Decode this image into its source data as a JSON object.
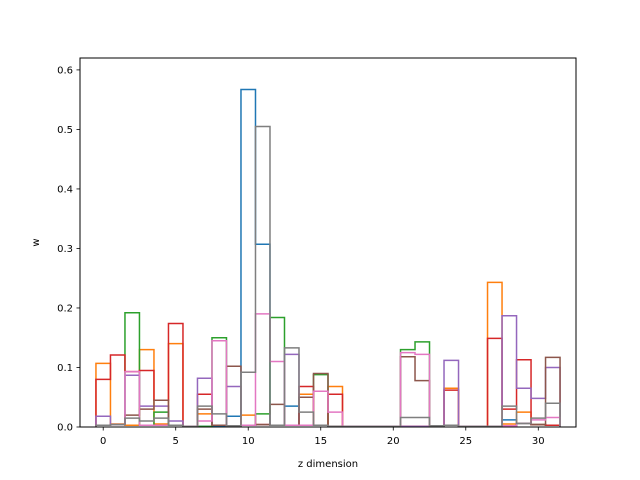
{
  "chart_data": {
    "type": "step",
    "title": "",
    "xlabel": "z dimension",
    "ylabel": "w",
    "xlim": [
      -1.6,
      32.6
    ],
    "ylim": [
      0,
      0.62
    ],
    "xticks": [
      0,
      5,
      10,
      15,
      20,
      25,
      30
    ],
    "xtick_labels": [
      "0",
      "5",
      "10",
      "15",
      "20",
      "25",
      "30"
    ],
    "yticks": [
      0.0,
      0.1,
      0.2,
      0.3,
      0.4,
      0.5,
      0.6
    ],
    "ytick_labels": [
      "0.0",
      "0.1",
      "0.2",
      "0.3",
      "0.4",
      "0.5",
      "0.6"
    ],
    "grid": false,
    "legend": false,
    "x": [
      0,
      1,
      2,
      3,
      4,
      5,
      6,
      7,
      8,
      9,
      10,
      11,
      12,
      13,
      14,
      15,
      16,
      17,
      18,
      19,
      20,
      21,
      22,
      23,
      24,
      25,
      26,
      27,
      28,
      29,
      30,
      31
    ],
    "series": [
      {
        "color": "#1f77b4",
        "values": [
          0.003,
          0.004,
          0.003,
          0.003,
          0.003,
          0.003,
          0.001,
          0.001,
          0.002,
          0.018,
          0.567,
          0.307,
          0.003,
          0.035,
          0.003,
          0.003,
          0.001,
          0.001,
          0.001,
          0.001,
          0.001,
          0.001,
          0.001,
          0.002,
          0.003,
          0.001,
          0.001,
          0.001,
          0.012,
          0.006,
          0.004,
          0.003
        ]
      },
      {
        "color": "#ff7f0e",
        "values": [
          0.107,
          0.005,
          0.003,
          0.13,
          0.005,
          0.14,
          0.001,
          0.022,
          0.003,
          0.002,
          0.02,
          0.004,
          0.003,
          0.003,
          0.055,
          0.003,
          0.068,
          0.001,
          0.001,
          0.001,
          0.001,
          0.001,
          0.001,
          0.002,
          0.065,
          0.001,
          0.001,
          0.243,
          0.005,
          0.025,
          0.004,
          0.003
        ]
      },
      {
        "color": "#2ca02c",
        "values": [
          0.003,
          0.004,
          0.192,
          0.003,
          0.025,
          0.003,
          0.001,
          0.001,
          0.15,
          0.002,
          0.003,
          0.022,
          0.184,
          0.003,
          0.003,
          0.088,
          0.001,
          0.001,
          0.001,
          0.001,
          0.001,
          0.13,
          0.143,
          0.002,
          0.003,
          0.001,
          0.001,
          0.001,
          0.002,
          0.006,
          0.004,
          0.003
        ]
      },
      {
        "color": "#d62728",
        "values": [
          0.08,
          0.121,
          0.093,
          0.095,
          0.045,
          0.174,
          0.001,
          0.055,
          0.003,
          0.002,
          0.003,
          0.004,
          0.003,
          0.003,
          0.068,
          0.003,
          0.055,
          0.001,
          0.001,
          0.001,
          0.001,
          0.001,
          0.001,
          0.002,
          0.062,
          0.001,
          0.001,
          0.149,
          0.03,
          0.113,
          0.004,
          0.003
        ]
      },
      {
        "color": "#9467bd",
        "values": [
          0.018,
          0.004,
          0.087,
          0.035,
          0.035,
          0.01,
          0.001,
          0.082,
          0.003,
          0.068,
          0.003,
          0.004,
          0.003,
          0.122,
          0.003,
          0.003,
          0.001,
          0.001,
          0.001,
          0.001,
          0.001,
          0.001,
          0.001,
          0.002,
          0.112,
          0.001,
          0.001,
          0.001,
          0.187,
          0.065,
          0.048,
          0.1
        ]
      },
      {
        "color": "#8c564b",
        "values": [
          0.003,
          0.004,
          0.02,
          0.03,
          0.045,
          0.003,
          0.001,
          0.03,
          0.003,
          0.102,
          0.003,
          0.004,
          0.038,
          0.003,
          0.05,
          0.09,
          0.001,
          0.001,
          0.001,
          0.001,
          0.001,
          0.118,
          0.078,
          0.002,
          0.003,
          0.001,
          0.001,
          0.001,
          0.002,
          0.006,
          0.004,
          0.117
        ]
      },
      {
        "color": "#e377c2",
        "values": [
          0.003,
          0.004,
          0.093,
          0.003,
          0.003,
          0.003,
          0.001,
          0.01,
          0.145,
          0.002,
          0.003,
          0.19,
          0.11,
          0.003,
          0.003,
          0.06,
          0.025,
          0.001,
          0.001,
          0.001,
          0.001,
          0.125,
          0.122,
          0.002,
          0.003,
          0.001,
          0.001,
          0.001,
          0.002,
          0.006,
          0.012,
          0.016
        ]
      },
      {
        "color": "#7f7f7f",
        "values": [
          0.003,
          0.004,
          0.015,
          0.01,
          0.015,
          0.003,
          0.001,
          0.035,
          0.022,
          0.002,
          0.092,
          0.505,
          0.003,
          0.133,
          0.025,
          0.003,
          0.001,
          0.001,
          0.001,
          0.001,
          0.001,
          0.016,
          0.016,
          0.002,
          0.003,
          0.001,
          0.001,
          0.001,
          0.035,
          0.006,
          0.015,
          0.04
        ]
      }
    ]
  }
}
